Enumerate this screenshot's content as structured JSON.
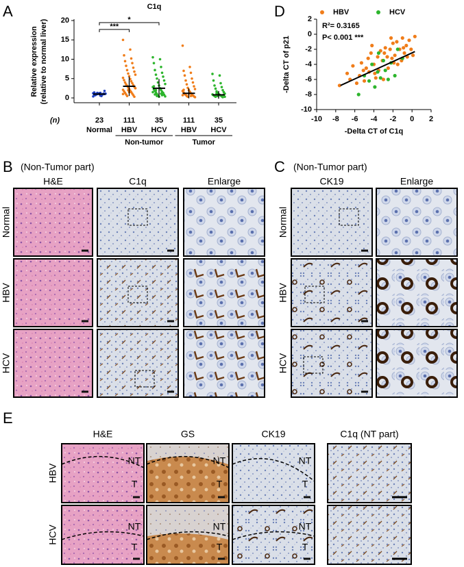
{
  "chart_data": [
    {
      "type": "dotplot",
      "letter": "A",
      "title": "C1q",
      "ylabel": [
        "Relative expression",
        "(relative to normal liver)"
      ],
      "ylim": [
        0,
        20
      ],
      "yticks": [
        0,
        5,
        10,
        15,
        20
      ],
      "count_label": "(n)",
      "categories": [
        "Normal",
        "HBV",
        "HCV",
        "HBV",
        "HCV"
      ],
      "counts": [
        23,
        111,
        35,
        111,
        35
      ],
      "group_labels": [
        "Non-tumor",
        "Tumor"
      ],
      "colors": [
        "#1f3fbf",
        "#f07d1a",
        "#2db52d",
        "#f07d1a",
        "#2db52d"
      ],
      "points": [
        [
          0.4,
          0.6,
          0.7,
          0.8,
          0.8,
          0.9,
          0.9,
          1.0,
          1.0,
          1.0,
          1.1,
          1.1,
          1.2,
          1.2,
          1.3,
          1.4,
          0.5,
          0.7,
          0.9,
          1.0,
          1.1,
          1.3,
          1.8
        ],
        [
          15.0,
          12.5,
          11.0,
          10.2,
          9.5,
          9.0,
          8.3,
          7.8,
          7.2,
          6.8,
          6.3,
          6.0,
          5.6,
          5.2,
          4.9,
          4.6,
          4.3,
          4.0,
          3.8,
          3.5,
          3.3,
          3.1,
          2.9,
          2.7,
          2.5,
          2.3,
          2.1,
          1.9,
          1.7,
          1.5,
          1.3,
          1.1,
          0.9,
          0.7,
          0.5,
          0.3,
          2.0,
          2.5,
          1.5,
          1.0
        ],
        [
          10.5,
          10.0,
          9.0,
          8.0,
          7.2,
          6.5,
          6.0,
          5.5,
          5.0,
          4.5,
          4.0,
          3.6,
          3.2,
          2.8,
          2.5,
          2.2,
          2.0,
          1.8,
          1.6,
          1.4,
          1.2,
          1.0,
          0.8,
          0.6,
          0.4,
          0.3,
          1.5,
          2.5,
          3.0,
          1.1,
          0.9,
          0.7,
          2.0,
          1.3,
          0.5
        ],
        [
          13.5,
          8.0,
          7.0,
          6.5,
          5.8,
          5.0,
          4.5,
          4.0,
          3.5,
          3.0,
          2.6,
          2.3,
          2.0,
          1.8,
          1.6,
          1.4,
          1.2,
          1.0,
          0.9,
          0.8,
          0.6,
          0.5,
          0.4,
          0.3,
          0.2,
          1.1,
          0.7,
          1.5,
          2.1,
          0.5
        ],
        [
          6.2,
          5.8,
          4.5,
          3.8,
          3.2,
          2.8,
          2.4,
          2.0,
          1.7,
          1.5,
          1.3,
          1.1,
          1.0,
          0.9,
          0.8,
          0.7,
          0.6,
          0.5,
          0.4,
          0.3,
          0.2,
          1.2,
          0.8,
          0.5,
          0.3
        ]
      ],
      "means": [
        1.0,
        3.0,
        2.5,
        1.2,
        0.8
      ],
      "errors": [
        0.3,
        2.5,
        2.4,
        1.3,
        1.0
      ],
      "comparisons": [
        {
          "label": "***"
        },
        {
          "label": "*"
        }
      ]
    },
    {
      "type": "scatter",
      "letter": "D",
      "xlabel": "-Delta CT of C1q",
      "ylabel": "-Delta CT of p21",
      "xlim": [
        -10,
        2
      ],
      "xticks": [
        -10,
        -8,
        -6,
        -4,
        -2,
        0,
        2
      ],
      "ylim": [
        -10,
        2
      ],
      "yticks": [
        -10,
        -8,
        -6,
        -4,
        -2,
        0,
        2
      ],
      "r_squared_label": "R²= 0.3165",
      "p_label": "P< 0.001 ***",
      "series": [
        {
          "name": "HBV",
          "color": "#f07d1a",
          "x": [
            -7.6,
            -6.5,
            -6.2,
            -5.8,
            -5.5,
            -5.3,
            -5.0,
            -4.8,
            -4.6,
            -4.5,
            -4.3,
            -4.0,
            -3.8,
            -3.6,
            -3.5,
            -3.3,
            -3.1,
            -3.0,
            -2.8,
            -2.6,
            -2.5,
            -2.3,
            -2.1,
            -2.0,
            -1.8,
            -1.6,
            -1.5,
            -1.3,
            -1.1,
            -1.0,
            -0.8,
            -0.6,
            -0.5,
            -0.3,
            -0.1,
            0.1,
            0.3,
            -4.2,
            -2.9,
            -1.9,
            -3.9,
            -5.1,
            -0.9,
            -2.2,
            -6.8
          ],
          "values": [
            -6.8,
            -6.0,
            -4.2,
            -6.5,
            -5.5,
            -3.8,
            -6.2,
            -4.5,
            -3.2,
            -5.0,
            -2.5,
            -4.0,
            -5.8,
            -3.0,
            -4.8,
            -2.2,
            -3.5,
            -6.0,
            -1.8,
            -3.0,
            -4.5,
            -2.0,
            -3.2,
            -1.2,
            -2.8,
            -1.0,
            -4.0,
            -2.0,
            -3.5,
            -0.5,
            -2.5,
            -1.5,
            -3.0,
            -0.8,
            -2.0,
            -2.8,
            -0.3,
            -1.5,
            -2.5,
            -3.8,
            -5.2,
            -4.8,
            -1.8,
            -0.5,
            -5.2
          ]
        },
        {
          "name": "HCV",
          "color": "#2db52d",
          "x": [
            -5.6,
            -5.0,
            -4.5,
            -4.2,
            -3.9,
            -3.6,
            -3.3,
            -3.0,
            -2.8,
            -2.5,
            -2.2,
            -1.8,
            -1.5,
            -1.0,
            -3.5
          ],
          "values": [
            -8.0,
            -5.5,
            -6.2,
            -4.0,
            -7.0,
            -5.0,
            -5.8,
            -3.5,
            -4.8,
            -6.0,
            -3.8,
            -5.5,
            -2.0,
            -3.2,
            -2.5
          ]
        }
      ],
      "trendline": {
        "x": [
          -7.5,
          0.3
        ],
        "values": [
          -6.8,
          -2.3
        ]
      }
    }
  ],
  "panels": {
    "B": {
      "letter": "B",
      "caption": "(Non-Tumor part)",
      "columns": [
        "H&E",
        "C1q",
        "Enlarge"
      ],
      "rows": [
        "Normal",
        "HBV",
        "HCV"
      ]
    },
    "C": {
      "letter": "C",
      "caption": "(Non-Tumor part)",
      "columns": [
        "CK19",
        "Enlarge"
      ],
      "rows": [
        "Normal",
        "HBV",
        "HCV"
      ]
    },
    "E": {
      "letter": "E",
      "columns": [
        "H&E",
        "GS",
        "CK19",
        "C1q (NT part)"
      ],
      "rows": [
        "HBV",
        "HCV"
      ],
      "region_labels": [
        "NT",
        "T"
      ]
    }
  }
}
